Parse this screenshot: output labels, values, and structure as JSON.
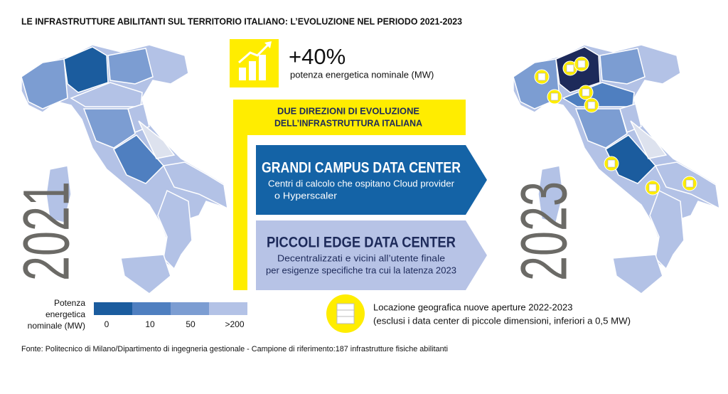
{
  "header": {
    "title": "LE INFRASTRUTTURE ABILITANTI SUL TERRITORIO ITALIANO: L’EVOLUZIONE NEL PERIODO 2021-2023"
  },
  "years": {
    "left": "2021",
    "right": "2023"
  },
  "highlight": {
    "value": "+40%",
    "label": "potenza energetica nominale (MW)"
  },
  "directions": {
    "title_lines": [
      "DUE DIREZIONI DI EVOLUZIONE",
      "DELL’INFRASTRUTTURA ITALIANA"
    ],
    "items": [
      {
        "title": "GRANDI CAMPUS DATA CENTER",
        "lines": [
          "Centri di calcolo che ospitano Cloud provider",
          "o Hyperscaler"
        ]
      },
      {
        "title": "PICCOLI EDGE DATA CENTER",
        "lines": [
          "Decentralizzati e vicini all’utente finale",
          "per esigenze specifiche tra cui la latenza 2023"
        ]
      }
    ]
  },
  "legend": {
    "title_lines": [
      "Potenza",
      "energetica",
      "nominale (MW)"
    ],
    "ticks": [
      "0",
      "10",
      "50",
      ">200"
    ]
  },
  "locations": {
    "lines": [
      "Locazione geografica nuove aperture 2022-2023",
      "(esclusi i data center di piccole dimensioni, inferiori a 0,5 MW)"
    ]
  },
  "footer": {
    "source": "Fonte: Politecnico di Milano/Dipartimento di ingegneria gestionale  - Campione di riferimento:187 infrastrutture fisiche abilitanti"
  }
}
